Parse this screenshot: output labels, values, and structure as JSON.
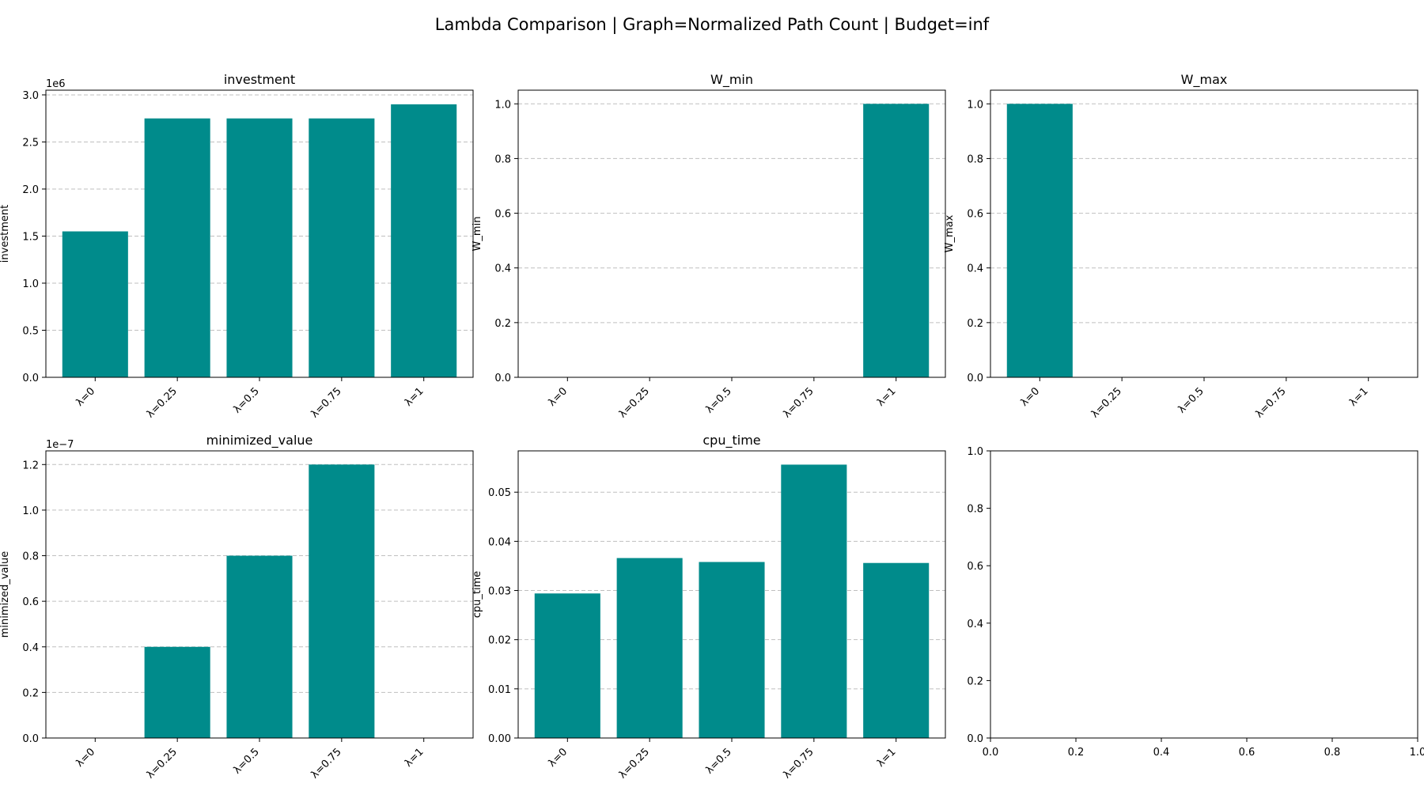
{
  "figure": {
    "title": "Lambda Comparison | Graph=Normalized Path Count | Budget=inf",
    "bar_color": "#008b8b"
  },
  "chart_data": [
    {
      "type": "bar",
      "title": "investment",
      "ylabel": "investment",
      "categories": [
        "λ=0",
        "λ=0.25",
        "λ=0.5",
        "λ=0.75",
        "λ=1"
      ],
      "values": [
        1550000,
        2750000,
        2750000,
        2750000,
        2900000
      ],
      "ylim": [
        0,
        3050000
      ],
      "yticks": [
        0,
        500000,
        1000000,
        1500000,
        2000000,
        2500000,
        3000000
      ],
      "ytick_labels": [
        "0.0",
        "0.5",
        "1.0",
        "1.5",
        "2.0",
        "2.5",
        "3.0"
      ],
      "offset_label": "1e6",
      "grid": true
    },
    {
      "type": "bar",
      "title": "W_min",
      "ylabel": "W_min",
      "categories": [
        "λ=0",
        "λ=0.25",
        "λ=0.5",
        "λ=0.75",
        "λ=1"
      ],
      "values": [
        0,
        0,
        0,
        0,
        1.0
      ],
      "ylim": [
        0,
        1.05
      ],
      "yticks": [
        0,
        0.2,
        0.4,
        0.6,
        0.8,
        1.0
      ],
      "ytick_labels": [
        "0.0",
        "0.2",
        "0.4",
        "0.6",
        "0.8",
        "1.0"
      ],
      "offset_label": "",
      "grid": true
    },
    {
      "type": "bar",
      "title": "W_max",
      "ylabel": "W_max",
      "categories": [
        "λ=0",
        "λ=0.25",
        "λ=0.5",
        "λ=0.75",
        "λ=1"
      ],
      "values": [
        1.0,
        0,
        0,
        0,
        0
      ],
      "ylim": [
        0,
        1.05
      ],
      "yticks": [
        0,
        0.2,
        0.4,
        0.6,
        0.8,
        1.0
      ],
      "ytick_labels": [
        "0.0",
        "0.2",
        "0.4",
        "0.6",
        "0.8",
        "1.0"
      ],
      "offset_label": "",
      "grid": true
    },
    {
      "type": "bar",
      "title": "minimized_value",
      "ylabel": "minimized_value",
      "categories": [
        "λ=0",
        "λ=0.25",
        "λ=0.5",
        "λ=0.75",
        "λ=1"
      ],
      "values": [
        0,
        4e-08,
        8e-08,
        1.2e-07,
        0
      ],
      "ylim": [
        0,
        1.26e-07
      ],
      "yticks": [
        0,
        2e-08,
        4e-08,
        6e-08,
        8e-08,
        1e-07,
        1.2e-07
      ],
      "ytick_labels": [
        "0.0",
        "0.2",
        "0.4",
        "0.6",
        "0.8",
        "1.0",
        "1.2"
      ],
      "offset_label": "1e−7",
      "grid": true
    },
    {
      "type": "bar",
      "title": "cpu_time",
      "ylabel": "cpu_time",
      "categories": [
        "λ=0",
        "λ=0.25",
        "λ=0.5",
        "λ=0.75",
        "λ=1"
      ],
      "values": [
        0.0294,
        0.0366,
        0.0358,
        0.0556,
        0.0356
      ],
      "ylim": [
        0,
        0.0584
      ],
      "yticks": [
        0,
        0.01,
        0.02,
        0.03,
        0.04,
        0.05
      ],
      "ytick_labels": [
        "0.00",
        "0.01",
        "0.02",
        "0.03",
        "0.04",
        "0.05"
      ],
      "offset_label": "",
      "grid": true
    },
    {
      "type": "empty",
      "title": "",
      "xlim": [
        0,
        1
      ],
      "ylim": [
        0,
        1
      ],
      "xticks": [
        0,
        0.2,
        0.4,
        0.6,
        0.8,
        1.0
      ],
      "xtick_labels": [
        "0.0",
        "0.2",
        "0.4",
        "0.6",
        "0.8",
        "1.0"
      ],
      "yticks": [
        0,
        0.2,
        0.4,
        0.6,
        0.8,
        1.0
      ],
      "ytick_labels": [
        "0.0",
        "0.2",
        "0.4",
        "0.6",
        "0.8",
        "1.0"
      ],
      "grid": false
    }
  ]
}
